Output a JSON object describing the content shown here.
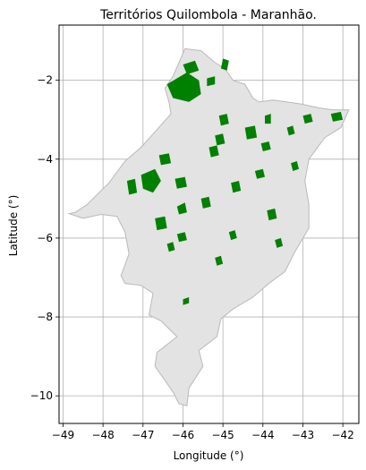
{
  "title": "Territórios Quilombola - Maranhão.",
  "xlabel": "Longitude (°)",
  "ylabel": "Latitude (°)",
  "x_ticks": [
    -49,
    -48,
    -47,
    -46,
    -45,
    -44,
    -43,
    -42
  ],
  "y_ticks": [
    -2,
    -4,
    -6,
    -8,
    -10
  ],
  "x_tick_labels": [
    "−49",
    "−48",
    "−47",
    "−46",
    "−45",
    "−44",
    "−43",
    "−42"
  ],
  "y_tick_labels": [
    "−2",
    "−4",
    "−6",
    "−8",
    "−10"
  ],
  "xlim": [
    -49.1,
    -41.6
  ],
  "ylim": [
    -10.7,
    -0.6
  ],
  "grid": true,
  "colors": {
    "state_fill": "#e3e3e3",
    "state_edge": "#b9b9b9",
    "territory_fill": "#008000",
    "grid": "#b0b0b0"
  },
  "chart_data": {
    "type": "map",
    "region": "Maranhão",
    "state_outline": [
      [
        -48.7,
        -5.35
      ],
      [
        -48.4,
        -5.15
      ],
      [
        -47.85,
        -4.6
      ],
      [
        -47.45,
        -4.05
      ],
      [
        -47.05,
        -3.7
      ],
      [
        -46.65,
        -3.25
      ],
      [
        -46.3,
        -2.85
      ],
      [
        -46.35,
        -2.55
      ],
      [
        -46.45,
        -2.2
      ],
      [
        -46.25,
        -1.9
      ],
      [
        -46.1,
        -1.55
      ],
      [
        -45.95,
        -1.2
      ],
      [
        -45.55,
        -1.25
      ],
      [
        -45.2,
        -1.55
      ],
      [
        -44.95,
        -1.7
      ],
      [
        -44.75,
        -2.0
      ],
      [
        -44.45,
        -2.1
      ],
      [
        -44.25,
        -2.45
      ],
      [
        -44.1,
        -2.55
      ],
      [
        -43.75,
        -2.5
      ],
      [
        -43.4,
        -2.55
      ],
      [
        -43.05,
        -2.6
      ],
      [
        -42.6,
        -2.7
      ],
      [
        -42.25,
        -2.75
      ],
      [
        -41.85,
        -2.75
      ],
      [
        -42.05,
        -3.2
      ],
      [
        -42.45,
        -3.45
      ],
      [
        -42.85,
        -4.0
      ],
      [
        -42.95,
        -4.55
      ],
      [
        -42.85,
        -5.15
      ],
      [
        -42.85,
        -5.75
      ],
      [
        -43.2,
        -6.35
      ],
      [
        -43.45,
        -6.85
      ],
      [
        -43.85,
        -7.15
      ],
      [
        -44.25,
        -7.5
      ],
      [
        -44.75,
        -7.8
      ],
      [
        -45.05,
        -8.05
      ],
      [
        -45.15,
        -8.5
      ],
      [
        -45.6,
        -8.85
      ],
      [
        -45.5,
        -9.25
      ],
      [
        -45.85,
        -9.8
      ],
      [
        -45.9,
        -10.25
      ],
      [
        -46.1,
        -10.2
      ],
      [
        -46.25,
        -9.9
      ],
      [
        -46.7,
        -9.25
      ],
      [
        -46.65,
        -8.9
      ],
      [
        -46.15,
        -8.5
      ],
      [
        -46.55,
        -8.1
      ],
      [
        -46.85,
        -7.95
      ],
      [
        -46.75,
        -7.4
      ],
      [
        -47.05,
        -7.2
      ],
      [
        -47.45,
        -7.15
      ],
      [
        -47.55,
        -6.95
      ],
      [
        -47.35,
        -6.4
      ],
      [
        -47.45,
        -5.85
      ],
      [
        -47.65,
        -5.45
      ],
      [
        -48.05,
        -5.4
      ],
      [
        -48.5,
        -5.5
      ],
      [
        -48.85,
        -5.38
      ]
    ],
    "territories": [
      [
        [
          -46.4,
          -2.1
        ],
        [
          -45.9,
          -1.8
        ],
        [
          -45.6,
          -2.0
        ],
        [
          -45.55,
          -2.35
        ],
        [
          -45.85,
          -2.55
        ],
        [
          -46.25,
          -2.45
        ]
      ],
      [
        [
          -46.0,
          -1.6
        ],
        [
          -45.7,
          -1.5
        ],
        [
          -45.6,
          -1.75
        ],
        [
          -45.9,
          -1.85
        ]
      ],
      [
        [
          -45.0,
          -1.45
        ],
        [
          -44.85,
          -1.5
        ],
        [
          -44.9,
          -1.75
        ],
        [
          -45.05,
          -1.7
        ]
      ],
      [
        [
          -45.4,
          -1.95
        ],
        [
          -45.2,
          -1.9
        ],
        [
          -45.2,
          -2.1
        ],
        [
          -45.4,
          -2.15
        ]
      ],
      [
        [
          -45.1,
          -2.9
        ],
        [
          -44.9,
          -2.85
        ],
        [
          -44.85,
          -3.1
        ],
        [
          -45.05,
          -3.15
        ]
      ],
      [
        [
          -45.2,
          -3.4
        ],
        [
          -45.0,
          -3.35
        ],
        [
          -44.95,
          -3.6
        ],
        [
          -45.15,
          -3.65
        ]
      ],
      [
        [
          -44.45,
          -3.2
        ],
        [
          -44.2,
          -3.15
        ],
        [
          -44.15,
          -3.45
        ],
        [
          -44.4,
          -3.5
        ]
      ],
      [
        [
          -44.05,
          -3.6
        ],
        [
          -43.85,
          -3.55
        ],
        [
          -43.8,
          -3.75
        ],
        [
          -44.0,
          -3.8
        ]
      ],
      [
        [
          -43.95,
          -2.9
        ],
        [
          -43.8,
          -2.85
        ],
        [
          -43.8,
          -3.1
        ],
        [
          -43.95,
          -3.1
        ]
      ],
      [
        [
          -43.0,
          -2.9
        ],
        [
          -42.8,
          -2.85
        ],
        [
          -42.75,
          -3.05
        ],
        [
          -42.95,
          -3.1
        ]
      ],
      [
        [
          -43.4,
          -3.2
        ],
        [
          -43.25,
          -3.15
        ],
        [
          -43.2,
          -3.35
        ],
        [
          -43.35,
          -3.4
        ]
      ],
      [
        [
          -42.3,
          -2.85
        ],
        [
          -42.05,
          -2.8
        ],
        [
          -42.0,
          -3.0
        ],
        [
          -42.25,
          -3.05
        ]
      ],
      [
        [
          -47.05,
          -4.4
        ],
        [
          -46.7,
          -4.25
        ],
        [
          -46.55,
          -4.55
        ],
        [
          -46.75,
          -4.85
        ],
        [
          -47.0,
          -4.75
        ]
      ],
      [
        [
          -47.4,
          -4.55
        ],
        [
          -47.2,
          -4.5
        ],
        [
          -47.15,
          -4.85
        ],
        [
          -47.35,
          -4.9
        ]
      ],
      [
        [
          -46.6,
          -3.9
        ],
        [
          -46.35,
          -3.85
        ],
        [
          -46.3,
          -4.1
        ],
        [
          -46.55,
          -4.15
        ]
      ],
      [
        [
          -46.2,
          -4.5
        ],
        [
          -45.95,
          -4.45
        ],
        [
          -45.9,
          -4.7
        ],
        [
          -46.15,
          -4.75
        ]
      ],
      [
        [
          -46.15,
          -5.2
        ],
        [
          -45.95,
          -5.1
        ],
        [
          -45.9,
          -5.35
        ],
        [
          -46.1,
          -5.4
        ]
      ],
      [
        [
          -45.55,
          -5.0
        ],
        [
          -45.35,
          -4.95
        ],
        [
          -45.3,
          -5.2
        ],
        [
          -45.5,
          -5.25
        ]
      ],
      [
        [
          -46.7,
          -5.5
        ],
        [
          -46.45,
          -5.45
        ],
        [
          -46.4,
          -5.75
        ],
        [
          -46.65,
          -5.8
        ]
      ],
      [
        [
          -46.15,
          -5.9
        ],
        [
          -45.95,
          -5.85
        ],
        [
          -45.9,
          -6.05
        ],
        [
          -46.1,
          -6.1
        ]
      ],
      [
        [
          -45.35,
          -3.7
        ],
        [
          -45.15,
          -3.65
        ],
        [
          -45.1,
          -3.9
        ],
        [
          -45.3,
          -3.95
        ]
      ],
      [
        [
          -44.8,
          -4.6
        ],
        [
          -44.6,
          -4.55
        ],
        [
          -44.55,
          -4.8
        ],
        [
          -44.75,
          -4.85
        ]
      ],
      [
        [
          -43.9,
          -5.3
        ],
        [
          -43.7,
          -5.25
        ],
        [
          -43.65,
          -5.5
        ],
        [
          -43.85,
          -5.55
        ]
      ],
      [
        [
          -44.2,
          -4.3
        ],
        [
          -44.0,
          -4.25
        ],
        [
          -43.95,
          -4.45
        ],
        [
          -44.15,
          -4.5
        ]
      ],
      [
        [
          -43.3,
          -4.1
        ],
        [
          -43.15,
          -4.05
        ],
        [
          -43.1,
          -4.25
        ],
        [
          -43.25,
          -4.3
        ]
      ],
      [
        [
          -44.85,
          -5.85
        ],
        [
          -44.7,
          -5.8
        ],
        [
          -44.65,
          -6.0
        ],
        [
          -44.8,
          -6.05
        ]
      ],
      [
        [
          -45.2,
          -6.5
        ],
        [
          -45.05,
          -6.45
        ],
        [
          -45.0,
          -6.65
        ],
        [
          -45.15,
          -6.7
        ]
      ],
      [
        [
          -46.4,
          -6.15
        ],
        [
          -46.25,
          -6.1
        ],
        [
          -46.2,
          -6.3
        ],
        [
          -46.35,
          -6.35
        ]
      ],
      [
        [
          -43.7,
          -6.05
        ],
        [
          -43.55,
          -6.0
        ],
        [
          -43.5,
          -6.2
        ],
        [
          -43.65,
          -6.25
        ]
      ],
      [
        [
          -46.0,
          -7.55
        ],
        [
          -45.85,
          -7.5
        ],
        [
          -45.85,
          -7.65
        ],
        [
          -46.0,
          -7.7
        ]
      ]
    ]
  }
}
